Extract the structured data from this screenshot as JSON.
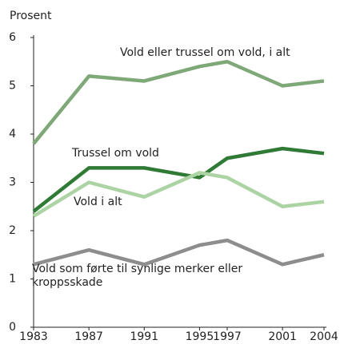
{
  "chart_data": {
    "type": "line",
    "y_label": "Prosent",
    "x": [
      1983,
      1987,
      1991,
      1995,
      1997,
      2001,
      2004
    ],
    "xlim": [
      1983,
      2004
    ],
    "xticks": [
      1983,
      1987,
      1991,
      1995,
      1997,
      2001,
      2004
    ],
    "ylim": [
      0,
      6
    ],
    "yticks": [
      0,
      1,
      2,
      3,
      4,
      5,
      6
    ],
    "grid": false,
    "series": [
      {
        "name": "Vold eller trussel om vold, i alt",
        "color": "#7fa878",
        "values": [
          3.8,
          5.2,
          5.1,
          5.4,
          5.5,
          5.0,
          5.1
        ]
      },
      {
        "name": "Trussel om vold",
        "color": "#2f7a35",
        "values": [
          2.4,
          3.3,
          3.3,
          3.1,
          3.5,
          3.7,
          3.6
        ]
      },
      {
        "name": "Vold i alt",
        "color": "#acd3a3",
        "values": [
          2.3,
          3.0,
          2.7,
          3.2,
          3.1,
          2.5,
          2.6
        ]
      },
      {
        "name": "Vold som førte til synlige merker eller kroppsskade",
        "color": "#8d8d8f",
        "values": [
          1.3,
          1.6,
          1.3,
          1.7,
          1.8,
          1.3,
          1.5
        ]
      }
    ]
  }
}
